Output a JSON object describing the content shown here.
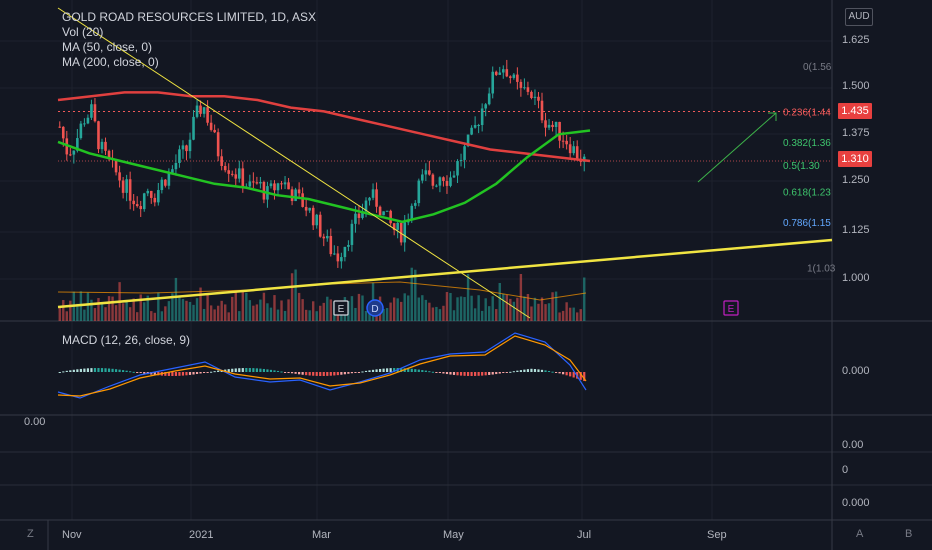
{
  "header": {
    "title": "GOLD ROAD RESOURCES LIMITED, 1D, ASX",
    "indicators": [
      "Vol (20)",
      "MA (50, close, 0)",
      "MA (200, close, 0)"
    ],
    "currency": "AUD"
  },
  "price_axis": [
    "1.625",
    "1.500",
    "1.375",
    "1.250",
    "1.125",
    "1.000"
  ],
  "price_tags": {
    "ma200": "1.435",
    "last": "1.310"
  },
  "fib_labels": [
    "0(1.56",
    "0.236(1.44",
    "0.382(1.36",
    "0.5(1.30",
    "0.618(1.23",
    "0.786(1.15",
    "1(1.03"
  ],
  "events": [
    "E",
    "D",
    "E"
  ],
  "macd": {
    "label": "MACD (12, 26, close, 9)",
    "axis": "0.000"
  },
  "empty_panes": {
    "left_value": "0.00",
    "axis_a": "0.00",
    "axis_b": "0",
    "axis_c": "0.000"
  },
  "time_axis": [
    "Nov",
    "2021",
    "Mar",
    "May",
    "Jul",
    "Sep"
  ],
  "corner_buttons": {
    "left": "Z",
    "auto": "A",
    "log": "B"
  },
  "colors": {
    "up": "#26a69a",
    "down": "#ef5350",
    "ma50": "#22c322",
    "ma200": "#e0403f",
    "trend": "#f0e442",
    "fib_red": "#f05a5a",
    "fib_green": "#3ec46d",
    "fib_blue": "#62a8ff",
    "macd_line": "#2962ff",
    "signal_line": "#ff9800"
  },
  "chart_data": {
    "type": "candlestick",
    "title": "GOLD ROAD RESOURCES LIMITED, 1D, ASX",
    "x_range": [
      "2020-10-22",
      "2021-06-30"
    ],
    "ylim": [
      0.95,
      1.65
    ],
    "close_approx": [
      1.4,
      1.33,
      1.36,
      1.42,
      1.44,
      1.35,
      1.31,
      1.28,
      1.25,
      1.22,
      1.2,
      1.24,
      1.22,
      1.26,
      1.28,
      1.32,
      1.34,
      1.42,
      1.46,
      1.4,
      1.33,
      1.3,
      1.28,
      1.26,
      1.24,
      1.25,
      1.22,
      1.24,
      1.26,
      1.23,
      1.21,
      1.19,
      1.16,
      1.12,
      1.08,
      1.06,
      1.1,
      1.14,
      1.18,
      1.22,
      1.2,
      1.16,
      1.13,
      1.12,
      1.18,
      1.24,
      1.27,
      1.25,
      1.28,
      1.26,
      1.3,
      1.34,
      1.38,
      1.44,
      1.5,
      1.55,
      1.56,
      1.52,
      1.49,
      1.5,
      1.46,
      1.42,
      1.4,
      1.38,
      1.36,
      1.33,
      1.31
    ],
    "ma50_approx": [
      1.36,
      1.33,
      1.31,
      1.29,
      1.27,
      1.25,
      1.24,
      1.22,
      1.21,
      1.19,
      1.17,
      1.15,
      1.17,
      1.2,
      1.25,
      1.32,
      1.38,
      1.39
    ],
    "ma200_approx": [
      1.47,
      1.48,
      1.49,
      1.49,
      1.48,
      1.48,
      1.47,
      1.45,
      1.44,
      1.42,
      1.4,
      1.38,
      1.36,
      1.34,
      1.33,
      1.32,
      1.31
    ],
    "fibonacci": [
      0,
      0.236,
      0.382,
      0.5,
      0.618,
      0.786,
      1
    ],
    "fib_prices": [
      1.56,
      1.44,
      1.36,
      1.3,
      1.23,
      1.15,
      1.03
    ],
    "last_price": 1.31
  }
}
